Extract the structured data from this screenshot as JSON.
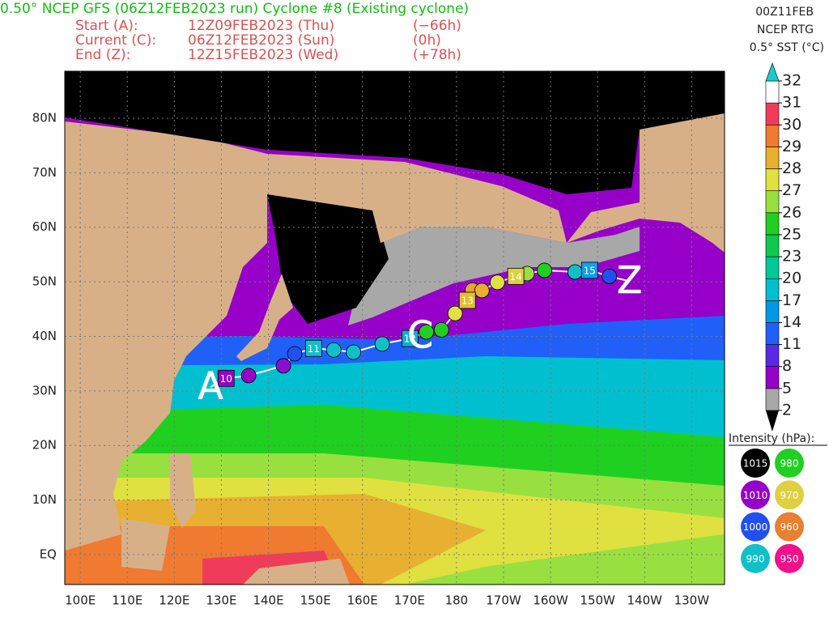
{
  "header": {
    "title": "0.50° NCEP GFS (06Z12FEB2023 run) Cyclone #8 (Existing cyclone)",
    "rows": [
      [
        "Start (A):",
        "12Z09FEB2023 (Thu)",
        "(−66h)"
      ],
      [
        "Current (C):",
        "06Z12FEB2023 (Sun)",
        "(0h)"
      ],
      [
        "End (Z):",
        "12Z15FEB2023 (Wed)",
        "(+78h)"
      ]
    ]
  },
  "sst_info": [
    "00Z11FEB",
    "NCEP RTG",
    "0.5° SST (°C)"
  ],
  "colorbar": {
    "levels": [
      2,
      5,
      8,
      11,
      14,
      17,
      20,
      23,
      25,
      26,
      27,
      28,
      29,
      30,
      31,
      32
    ],
    "colors": [
      "#a8a8a8",
      "#9600c8",
      "#5a28e6",
      "#2060f8",
      "#0098e8",
      "#00c0d0",
      "#00c896",
      "#10c850",
      "#20d020",
      "#98e040",
      "#e0e040",
      "#e8b030",
      "#f07a30",
      "#f03c5a",
      "#ffffff"
    ],
    "over_color": "#20c8c8",
    "under_color": "#000000"
  },
  "map": {
    "xlim": [
      96.7,
      237
    ],
    "ylim": [
      -5.5,
      88.6
    ],
    "xticks": [
      {
        "value": 100,
        "label": "100E"
      },
      {
        "value": 110,
        "label": "110E"
      },
      {
        "value": 120,
        "label": "120E"
      },
      {
        "value": 130,
        "label": "130E"
      },
      {
        "value": 140,
        "label": "140E"
      },
      {
        "value": 150,
        "label": "150E"
      },
      {
        "value": 160,
        "label": "160E"
      },
      {
        "value": 170,
        "label": "170E"
      },
      180,
      {
        "value": 190,
        "label": "170W"
      },
      {
        "value": 200,
        "label": "160W"
      },
      {
        "value": 210,
        "label": "150W"
      },
      {
        "value": 220,
        "label": "140W"
      },
      {
        "value": 230,
        "label": "130W"
      }
    ],
    "yticks": [
      {
        "value": 0,
        "label": "EQ"
      },
      {
        "value": 10,
        "label": "10N"
      },
      {
        "value": 20,
        "label": "20N"
      },
      {
        "value": 30,
        "label": "30N"
      },
      {
        "value": 40,
        "label": "40N"
      },
      {
        "value": 50,
        "label": "50N"
      },
      {
        "value": 60,
        "label": "60N"
      },
      {
        "value": 70,
        "label": "70N"
      },
      {
        "value": 80,
        "label": "80N"
      }
    ]
  },
  "track": {
    "points": [
      {
        "lon": 135.8,
        "lat": 32.8,
        "color": "#9600c8"
      },
      {
        "lon": 143.2,
        "lat": 34.6,
        "color": "#8a10d0"
      },
      {
        "lon": 145.6,
        "lat": 36.8,
        "color": "#2050f0"
      },
      {
        "lon": 153.9,
        "lat": 37.5,
        "color": "#10c0c8"
      },
      {
        "lon": 158.1,
        "lat": 37.1,
        "color": "#10c0c8"
      },
      {
        "lon": 164.2,
        "lat": 38.6,
        "color": "#10c0c8"
      },
      {
        "lon": 173.6,
        "lat": 40.8,
        "color": "#20d020"
      },
      {
        "lon": 176.8,
        "lat": 41.2,
        "color": "#20d020"
      },
      {
        "lon": 179.7,
        "lat": 44.2,
        "color": "#e0e040"
      },
      {
        "lon": 183.4,
        "lat": 48.5,
        "color": "#e8a030"
      },
      {
        "lon": 185.4,
        "lat": 48.4,
        "color": "#e8b030"
      },
      {
        "lon": 188.7,
        "lat": 49.9,
        "color": "#e0e040"
      },
      {
        "lon": 195.0,
        "lat": 51.5,
        "color": "#98e040"
      },
      {
        "lon": 198.7,
        "lat": 52.1,
        "color": "#20d020"
      },
      {
        "lon": 205.2,
        "lat": 51.8,
        "color": "#10c0c8"
      },
      {
        "lon": 212.5,
        "lat": 51.0,
        "color": "#2050f0"
      }
    ],
    "day_labels": [
      {
        "label": "10",
        "lon": 131.0,
        "lat": 32.3,
        "color": "#9600c8"
      },
      {
        "label": "11",
        "lon": 149.6,
        "lat": 37.8,
        "color": "#10c0c8"
      },
      {
        "label": "12",
        "lon": 170.1,
        "lat": 39.6,
        "color": "#10b0d0"
      },
      {
        "label": "13",
        "lon": 182.3,
        "lat": 46.6,
        "color": "#e0c030"
      },
      {
        "label": "14",
        "lon": 192.6,
        "lat": 51.0,
        "color": "#e0d040"
      },
      {
        "label": "15",
        "lon": 208.3,
        "lat": 52.1,
        "color": "#10a0e8"
      }
    ],
    "markers": [
      {
        "label": "A",
        "lon": 127.7,
        "lat": 30.7
      },
      {
        "label": "C",
        "lon": 172.3,
        "lat": 40.1
      },
      {
        "label": "Z",
        "lon": 216.8,
        "lat": 50.1
      }
    ]
  },
  "intensity": {
    "title": "Intensity (hPa):",
    "items": [
      {
        "value": 1015,
        "color": "#000000"
      },
      {
        "value": 980,
        "color": "#20d020"
      },
      {
        "value": 1010,
        "color": "#9600c8"
      },
      {
        "value": 970,
        "color": "#e0d040"
      },
      {
        "value": 1000,
        "color": "#2050f0"
      },
      {
        "value": 960,
        "color": "#e88030"
      },
      {
        "value": 990,
        "color": "#10c0c8"
      },
      {
        "value": 950,
        "color": "#f0108a"
      }
    ]
  }
}
